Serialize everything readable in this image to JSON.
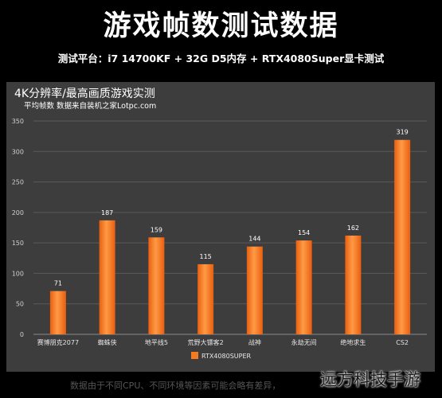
{
  "header": {
    "title": "游戏帧数测试数据",
    "subtitle": "测试平台：i7 14700KF + 32G D5内存 + RTX4080Super显卡测试"
  },
  "chart_data": {
    "type": "bar",
    "title": "4K分辨率/最高画质游戏实测",
    "subtitle": "平均帧数 数据来自装机之家Lotpc.com",
    "categories": [
      "赛博朋克2077",
      "蜘蛛侠",
      "地平线5",
      "荒野大镖客2",
      "战神",
      "永劫无间",
      "绝地求生",
      "CS2"
    ],
    "series": [
      {
        "name": "RTX4080SUPER",
        "values": [
          71,
          187,
          159,
          115,
          144,
          154,
          162,
          319
        ]
      }
    ],
    "ylim": [
      0,
      350
    ],
    "yticks": [
      0,
      50,
      100,
      150,
      200,
      250,
      300,
      350
    ],
    "grid": true,
    "legend": "bottom-center",
    "colors": {
      "bar": "#f47b20",
      "panel": "#3d3d3d"
    }
  },
  "footer": {
    "note": "数据由于不同CPU、不同环境等因素可能会略有差异，"
  },
  "watermark": "远方科技手游"
}
